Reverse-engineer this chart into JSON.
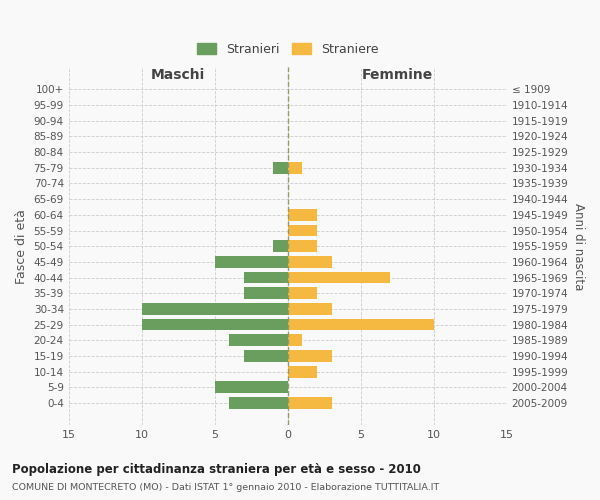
{
  "age_groups": [
    "100+",
    "95-99",
    "90-94",
    "85-89",
    "80-84",
    "75-79",
    "70-74",
    "65-69",
    "60-64",
    "55-59",
    "50-54",
    "45-49",
    "40-44",
    "35-39",
    "30-34",
    "25-29",
    "20-24",
    "15-19",
    "10-14",
    "5-9",
    "0-4"
  ],
  "birth_years": [
    "≤ 1909",
    "1910-1914",
    "1915-1919",
    "1920-1924",
    "1925-1929",
    "1930-1934",
    "1935-1939",
    "1940-1944",
    "1945-1949",
    "1950-1954",
    "1955-1959",
    "1960-1964",
    "1965-1969",
    "1970-1974",
    "1975-1979",
    "1980-1984",
    "1985-1989",
    "1990-1994",
    "1995-1999",
    "2000-2004",
    "2005-2009"
  ],
  "males": [
    0,
    0,
    0,
    0,
    0,
    1,
    0,
    0,
    0,
    0,
    1,
    5,
    3,
    3,
    10,
    10,
    4,
    3,
    0,
    5,
    4
  ],
  "females": [
    0,
    0,
    0,
    0,
    0,
    1,
    0,
    0,
    2,
    2,
    2,
    3,
    7,
    2,
    3,
    10,
    1,
    3,
    2,
    0,
    3
  ],
  "male_color": "#6a9e5e",
  "female_color": "#f5b942",
  "male_label": "Stranieri",
  "female_label": "Straniere",
  "title": "Popolazione per cittadinanza straniera per età e sesso - 2010",
  "subtitle": "COMUNE DI MONTECRETO (MO) - Dati ISTAT 1° gennaio 2010 - Elaborazione TUTTITALIA.IT",
  "xlabel_left": "Maschi",
  "xlabel_right": "Femmine",
  "ylabel_left": "Fasce di età",
  "ylabel_right": "Anni di nascita",
  "xlim": 15,
  "bg_color": "#f9f9f9",
  "grid_color": "#cccccc",
  "bar_height": 0.75
}
